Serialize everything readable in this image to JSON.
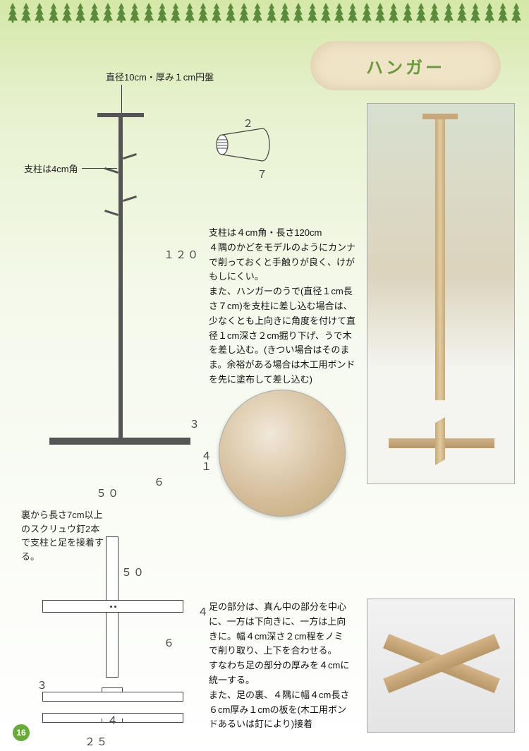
{
  "title": "ハンガー",
  "page_number": "16",
  "labels": {
    "top_disc": "直径10cm・厚み１cm円盤",
    "pillar": "支柱は4cm角",
    "screw_note": "裏から長さ7cm以上のスクリュウ釘2本で支柱と足を接着する。"
  },
  "dims": {
    "height": "１２０",
    "base_w": "５０",
    "base_w2": "５０",
    "three": "３",
    "four": "４",
    "one": "１",
    "six": "６",
    "four2": "４",
    "twentyfive": "２５",
    "three2": "３",
    "peg_len": "７",
    "peg_dia": "２"
  },
  "body1": "支柱は４cm角・長さ120cm\n４隅のかどをモデルのようにカンナで削っておくと手触りが良く、けがもしにくい。\nまた、ハンガーのうで(直径１cm長さ７cm)を支柱に差し込む場合は、少なくとも上向きに角度を付けて直径１cm深さ２cm掘り下げ、うで木を差し込む。(きつい場合はそのまま。余裕がある場合は木工用ボンドを先に塗布して差し込む)",
  "body2": "足の部分は、真ん中の部分を中心に、一方は下向きに、一方は上向きに。幅４cm深さ２cm程をノミで削り取り、上下を合わせる。\nすなわち足の部分の厚みを４cmに統一する。\nまた、足の裏、４隅に幅４cm長さ６cm厚み１cmの板を(木工用ボンドあるいは釘により)接着",
  "colors": {
    "accent_green": "#6a9a3a",
    "bg_top": "#d4e8a8"
  }
}
